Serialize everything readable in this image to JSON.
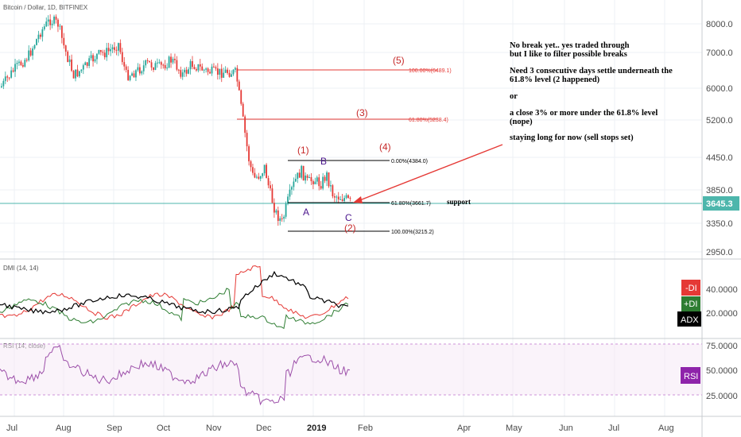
{
  "header": {
    "symbol": "Bitcoin / Dollar, 1D, BITFINEX"
  },
  "price_axis": {
    "ticks": [
      "8000.0",
      "7000.0",
      "6000.0",
      "5200.0",
      "4450.0",
      "3850.0",
      "3350.0",
      "2950.0"
    ],
    "current": "3645.3"
  },
  "time_axis": {
    "ticks": [
      "Jul",
      "Aug",
      "Sep",
      "Oct",
      "Nov",
      "Dec",
      "2019",
      "Feb",
      "Apr",
      "May",
      "Jun",
      "Jul",
      "Aug"
    ]
  },
  "fib": [
    {
      "label": "100.00%(6489.1)",
      "color": "#e53935"
    },
    {
      "label": "61.80%(5238.4)",
      "color": "#e53935"
    },
    {
      "label": "0.00%(4384.0)",
      "color": "#000000"
    },
    {
      "label": "61.80%(3661.7)",
      "color": "#000000"
    },
    {
      "label": "100.00%(3215.2)",
      "color": "#000000"
    }
  ],
  "waves": [
    "(5)",
    "(3)",
    "(1)",
    "(4)",
    "B",
    "A",
    "C",
    "(2)"
  ],
  "support_label": "support",
  "note": {
    "line1": "No break yet.. yes traded through",
    "line2": "but I like to filter possible breaks",
    "line3": "Need 3 consecutive days settle underneath the",
    "line4": "61.8% level (2 happened)",
    "line5": "or",
    "line6": "a close 3% or more under the 61.8% level",
    "line7": "(nope)",
    "line8": "staying long for now (sell stops set)"
  },
  "dmi": {
    "title": "DMI (14, 14)",
    "ticks": [
      "40.0000",
      "20.0000"
    ],
    "badges": [
      {
        "label": "-DI",
        "color": "#e53935"
      },
      {
        "label": "+DI",
        "color": "#2e7d32"
      },
      {
        "label": "ADX",
        "color": "#000000"
      }
    ]
  },
  "rsi": {
    "title": "RSI (14, close)",
    "ticks": [
      "75.0000",
      "50.0000",
      "25.0000"
    ],
    "badge": {
      "label": "RSI",
      "color": "#8e24aa"
    }
  },
  "colors": {
    "up": "#26a69a",
    "down": "#e53935",
    "rsi": "#9c4fa9",
    "support": "#4db6ac"
  }
}
